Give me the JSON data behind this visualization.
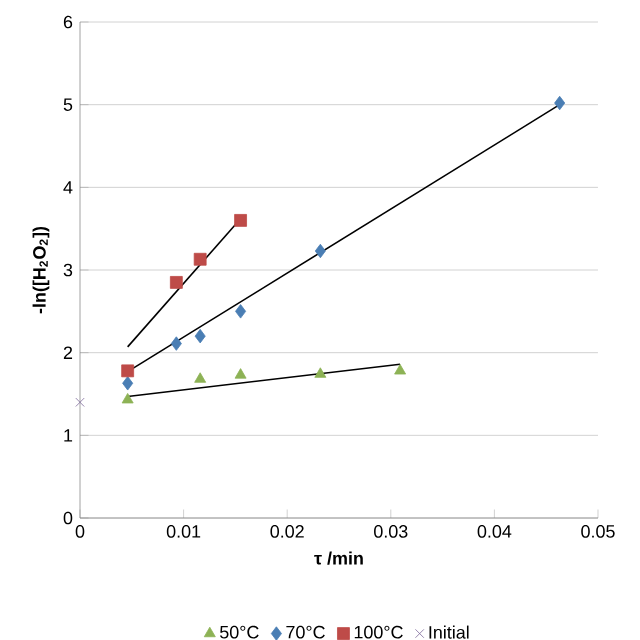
{
  "chart_data": {
    "type": "scatter",
    "xlabel": "τ /min",
    "ylabel": "-ln([H$_{2}$O$_{2}$])",
    "xlim": [
      0,
      0.05
    ],
    "xticks": [
      0,
      0.01,
      0.02,
      0.03,
      0.04,
      0.05
    ],
    "ylim": [
      0,
      6
    ],
    "yticks": [
      0,
      1,
      2,
      3,
      4,
      5,
      6
    ],
    "grid": "y",
    "legend": "bottom",
    "series": [
      {
        "name": "50°C",
        "color": "#8db255",
        "marker": "triangle",
        "x": [
          0.0046,
          0.0116,
          0.0155,
          0.0232,
          0.0309
        ],
        "values": [
          1.43,
          1.68,
          1.73,
          1.74,
          1.78
        ]
      },
      {
        "name": "70°C",
        "color": "#4a7eb4",
        "marker": "diamond",
        "x": [
          0.0046,
          0.0093,
          0.0116,
          0.0155,
          0.0232,
          0.0463
        ],
        "values": [
          1.63,
          2.11,
          2.2,
          2.5,
          3.23,
          5.02
        ]
      },
      {
        "name": "100°C",
        "color": "#be4b48",
        "marker": "square",
        "x": [
          0.0046,
          0.0093,
          0.0116,
          0.0155
        ],
        "values": [
          1.78,
          2.85,
          3.13,
          3.6
        ]
      },
      {
        "name": "Initial",
        "color": "#7e6a9a",
        "marker": "cross",
        "x": [
          0
        ],
        "values": [
          1.4
        ]
      },
      {
        "type": "line",
        "color": "#000000",
        "marker": "none",
        "x": [
          0.0046,
          0.0309
        ],
        "values": [
          1.47,
          1.86
        ]
      },
      {
        "type": "line",
        "color": "#000000",
        "marker": "none",
        "x": [
          0.0046,
          0.0463
        ],
        "values": [
          1.77,
          5.0
        ]
      },
      {
        "type": "line",
        "color": "#000000",
        "marker": "none",
        "x": [
          0.0046,
          0.0155
        ],
        "values": [
          2.07,
          3.62
        ]
      }
    ]
  }
}
